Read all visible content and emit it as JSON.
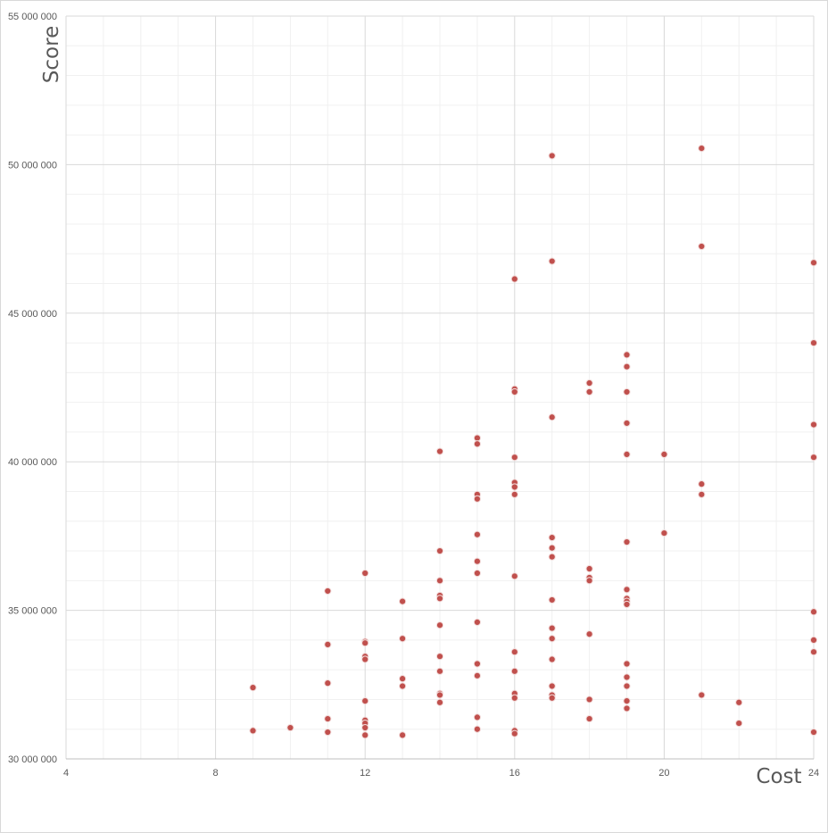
{
  "chart_data": {
    "type": "scatter",
    "title": "",
    "xlabel": "Cost",
    "ylabel": "Score",
    "xlim": [
      4,
      24
    ],
    "ylim": [
      30000000,
      55000000
    ],
    "x_ticks": [
      "4",
      "8",
      "12",
      "16",
      "20",
      "24"
    ],
    "y_ticks": [
      "30 000 000",
      "35 000 000",
      "40 000 000",
      "45 000 000",
      "50 000 000",
      "55 000 000"
    ],
    "grid": true,
    "legend": "none",
    "marker_color": "#c0504d",
    "marker_edge_color": "#f2dcdb",
    "gridline_major_color": "#d9d9d9",
    "gridline_minor_color": "#f0f0f0",
    "series": [
      {
        "points": [
          [
            9,
            32400000
          ],
          [
            9,
            30950000
          ],
          [
            10,
            31050000
          ],
          [
            11,
            35650000
          ],
          [
            11,
            33850000
          ],
          [
            11,
            32550000
          ],
          [
            11,
            31350000
          ],
          [
            11,
            30900000
          ],
          [
            12,
            36250000
          ],
          [
            12,
            33950000
          ],
          [
            12,
            33900000
          ],
          [
            12,
            33450000
          ],
          [
            12,
            33350000
          ],
          [
            12,
            31950000
          ],
          [
            12,
            31300000
          ],
          [
            12,
            31200000
          ],
          [
            12,
            31050000
          ],
          [
            12,
            30800000
          ],
          [
            13,
            35300000
          ],
          [
            13,
            34050000
          ],
          [
            13,
            32700000
          ],
          [
            13,
            32450000
          ],
          [
            13,
            30800000
          ],
          [
            14,
            40350000
          ],
          [
            14,
            37000000
          ],
          [
            14,
            36000000
          ],
          [
            14,
            35500000
          ],
          [
            14,
            35400000
          ],
          [
            14,
            34500000
          ],
          [
            14,
            33450000
          ],
          [
            14,
            32950000
          ],
          [
            14,
            32200000
          ],
          [
            14,
            32150000
          ],
          [
            14,
            31900000
          ],
          [
            15,
            40800000
          ],
          [
            15,
            40600000
          ],
          [
            15,
            38900000
          ],
          [
            15,
            38750000
          ],
          [
            15,
            37550000
          ],
          [
            15,
            36650000
          ],
          [
            15,
            36250000
          ],
          [
            15,
            34600000
          ],
          [
            15,
            33200000
          ],
          [
            15,
            32800000
          ],
          [
            15,
            31400000
          ],
          [
            15,
            31000000
          ],
          [
            16,
            46150000
          ],
          [
            16,
            42450000
          ],
          [
            16,
            42350000
          ],
          [
            16,
            40150000
          ],
          [
            16,
            39300000
          ],
          [
            16,
            39150000
          ],
          [
            16,
            38900000
          ],
          [
            16,
            36150000
          ],
          [
            16,
            33600000
          ],
          [
            16,
            32950000
          ],
          [
            16,
            32200000
          ],
          [
            16,
            32050000
          ],
          [
            16,
            30950000
          ],
          [
            16,
            30850000
          ],
          [
            17,
            50300000
          ],
          [
            17,
            46750000
          ],
          [
            17,
            41500000
          ],
          [
            17,
            37450000
          ],
          [
            17,
            37100000
          ],
          [
            17,
            36800000
          ],
          [
            17,
            35350000
          ],
          [
            17,
            34400000
          ],
          [
            17,
            34050000
          ],
          [
            17,
            33350000
          ],
          [
            17,
            32450000
          ],
          [
            17,
            32150000
          ],
          [
            17,
            32050000
          ],
          [
            18,
            42650000
          ],
          [
            18,
            42350000
          ],
          [
            18,
            36400000
          ],
          [
            18,
            36100000
          ],
          [
            18,
            36000000
          ],
          [
            18,
            34200000
          ],
          [
            18,
            32000000
          ],
          [
            18,
            31350000
          ],
          [
            19,
            43600000
          ],
          [
            19,
            43200000
          ],
          [
            19,
            42350000
          ],
          [
            19,
            41300000
          ],
          [
            19,
            40250000
          ],
          [
            19,
            37300000
          ],
          [
            19,
            35700000
          ],
          [
            19,
            35400000
          ],
          [
            19,
            35300000
          ],
          [
            19,
            35200000
          ],
          [
            19,
            33200000
          ],
          [
            19,
            32750000
          ],
          [
            19,
            32450000
          ],
          [
            19,
            31950000
          ],
          [
            19,
            31700000
          ],
          [
            20,
            40250000
          ],
          [
            20,
            37600000
          ],
          [
            21,
            50550000
          ],
          [
            21,
            47250000
          ],
          [
            21,
            39250000
          ],
          [
            21,
            38900000
          ],
          [
            21,
            32150000
          ],
          [
            22,
            31900000
          ],
          [
            22,
            31200000
          ],
          [
            24,
            46700000
          ],
          [
            24,
            44000000
          ],
          [
            24,
            41250000
          ],
          [
            24,
            40150000
          ],
          [
            24,
            34950000
          ],
          [
            24,
            34000000
          ],
          [
            24,
            33600000
          ],
          [
            24,
            30900000
          ]
        ]
      }
    ]
  }
}
